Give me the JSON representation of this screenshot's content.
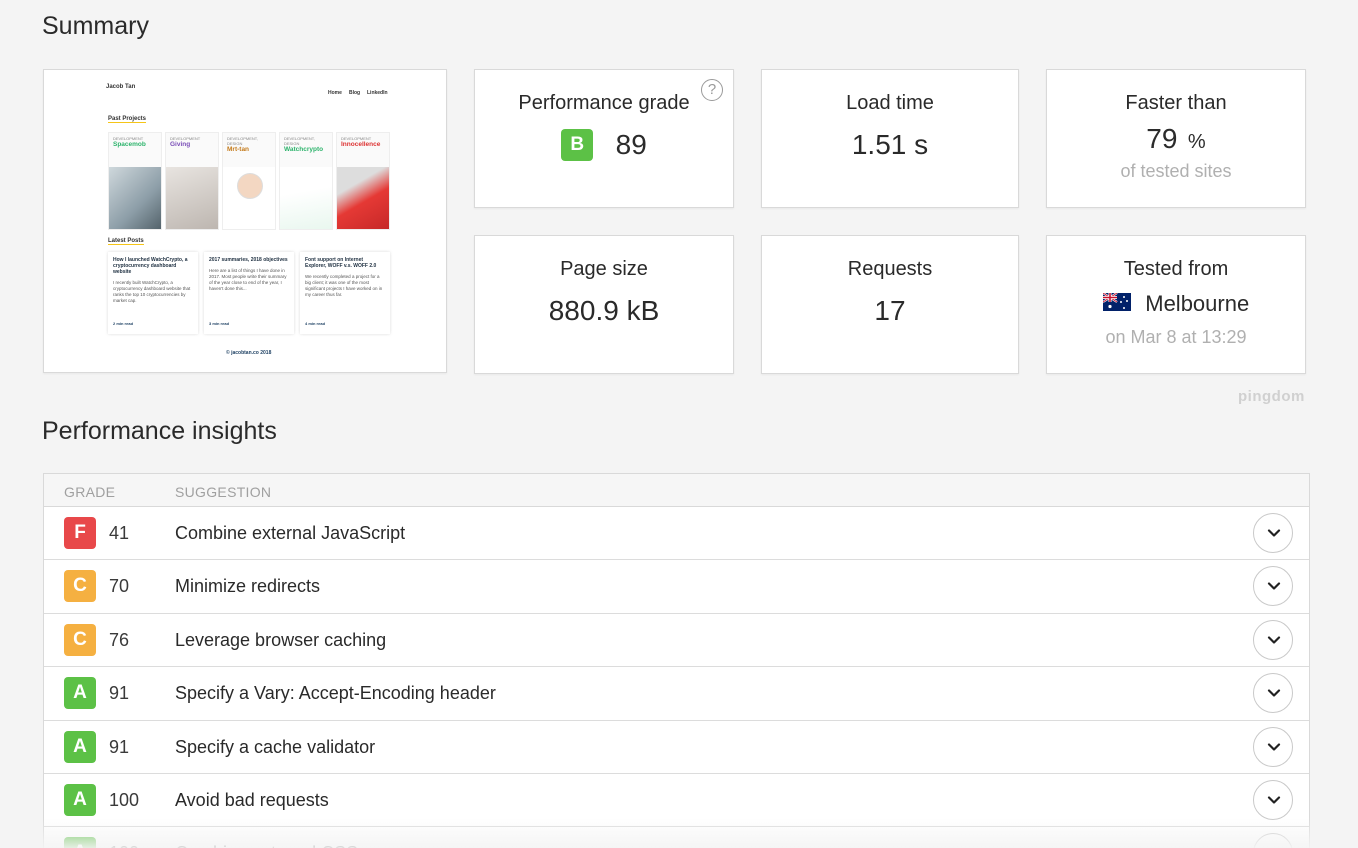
{
  "summary": {
    "title": "Summary",
    "performance_grade": {
      "label": "Performance grade",
      "letter": "B",
      "value": "89",
      "help": "?"
    },
    "load_time": {
      "label": "Load time",
      "value": "1.51 s"
    },
    "faster_than": {
      "label": "Faster than",
      "value": "79",
      "unit": "%",
      "sub": "of tested sites"
    },
    "page_size": {
      "label": "Page size",
      "value": "880.9 kB"
    },
    "requests": {
      "label": "Requests",
      "value": "17"
    },
    "tested_from": {
      "label": "Tested from",
      "city": "Melbourne",
      "sub": "on Mar 8 at 13:29"
    }
  },
  "screenshot": {
    "site_name": "Jacob Tan",
    "nav": [
      "Home",
      "Blog",
      "LinkedIn"
    ],
    "past_projects_title": "Past Projects",
    "projects": [
      {
        "tag": "DEVELOPMENT",
        "name": "Spacemob",
        "color": "#2cb36b"
      },
      {
        "tag": "DEVELOPMENT",
        "name": "Giving",
        "color": "#7b4fb8"
      },
      {
        "tag": "DEVELOPMENT, DESIGN",
        "name": "Mrt-tan",
        "color": "#c47a1a"
      },
      {
        "tag": "DEVELOPMENT, DESIGN",
        "name": "Watchcrypto",
        "color": "#2cb36b"
      },
      {
        "tag": "DEVELOPMENT",
        "name": "Innocellence",
        "color": "#d33"
      }
    ],
    "latest_posts_title": "Latest Posts",
    "posts": [
      {
        "title": "How I launched WatchCrypto, a cryptocurrency dashboard website",
        "body": "I recently built WatchCrypto, a cryptocurrency dashboard website that ranks the top 10 cryptocurrencies by market cap.",
        "read": "2 min read"
      },
      {
        "title": "2017 summaries, 2018 objectives",
        "body": "Here are a list of things I have done in 2017. Most people write their summary of the year close to end of the year, I haven't done this...",
        "read": "3 min read"
      },
      {
        "title": "Font support on Internet Explorer, WOFF v.s. WOFF 2.0",
        "body": "We recently completed a project for a big client; it was one of the most significant projects I have worked on in my career thus far.",
        "read": "4 min read"
      }
    ],
    "footer": "© jacobtan.co 2018"
  },
  "brand": "pingdom",
  "insights": {
    "title": "Performance insights",
    "col_grade": "GRADE",
    "col_suggestion": "SUGGESTION",
    "rows": [
      {
        "letter": "F",
        "score": "41",
        "suggestion": "Combine external JavaScript",
        "color": "#e8484a"
      },
      {
        "letter": "C",
        "score": "70",
        "suggestion": "Minimize redirects",
        "color": "#f5b041"
      },
      {
        "letter": "C",
        "score": "76",
        "suggestion": "Leverage browser caching",
        "color": "#f5b041"
      },
      {
        "letter": "A",
        "score": "91",
        "suggestion": "Specify a Vary: Accept-Encoding header",
        "color": "#5cc146"
      },
      {
        "letter": "A",
        "score": "91",
        "suggestion": "Specify a cache validator",
        "color": "#5cc146"
      },
      {
        "letter": "A",
        "score": "100",
        "suggestion": "Avoid bad requests",
        "color": "#5cc146"
      },
      {
        "letter": "A",
        "score": "100",
        "suggestion": "Combine external CSS",
        "color": "#5cc146"
      }
    ]
  },
  "colors": {
    "grade_b": "#5cc146"
  }
}
